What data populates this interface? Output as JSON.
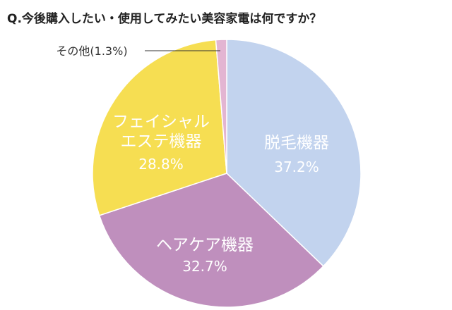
{
  "chart_data": {
    "type": "pie",
    "title": "Q.今後購入したい・使用してみたい美容家電は何ですか？",
    "start_angle_deg": 0,
    "direction": "clockwise",
    "slices": [
      {
        "key": "hair-removal",
        "label_lines": [
          "脱毛機器"
        ],
        "value": 37.2,
        "value_label": "37.2%",
        "color": "#c2d3ee",
        "text_color": "#ffffff"
      },
      {
        "key": "hair-care",
        "label_lines": [
          "ヘアケア機器"
        ],
        "value": 32.7,
        "value_label": "32.7%",
        "color": "#bf8fbd",
        "text_color": "#ffffff"
      },
      {
        "key": "facial-esthe",
        "label_lines": [
          "フェイシャル",
          "エステ機器"
        ],
        "value": 28.8,
        "value_label": "28.8%",
        "color": "#f6de52",
        "text_color": "#ffffff"
      },
      {
        "key": "other",
        "label_lines": [
          "その他(1.3%)"
        ],
        "value": 1.3,
        "value_label": "",
        "color": "#e3b5d2",
        "text_color": "#333333",
        "callout": true
      }
    ]
  }
}
